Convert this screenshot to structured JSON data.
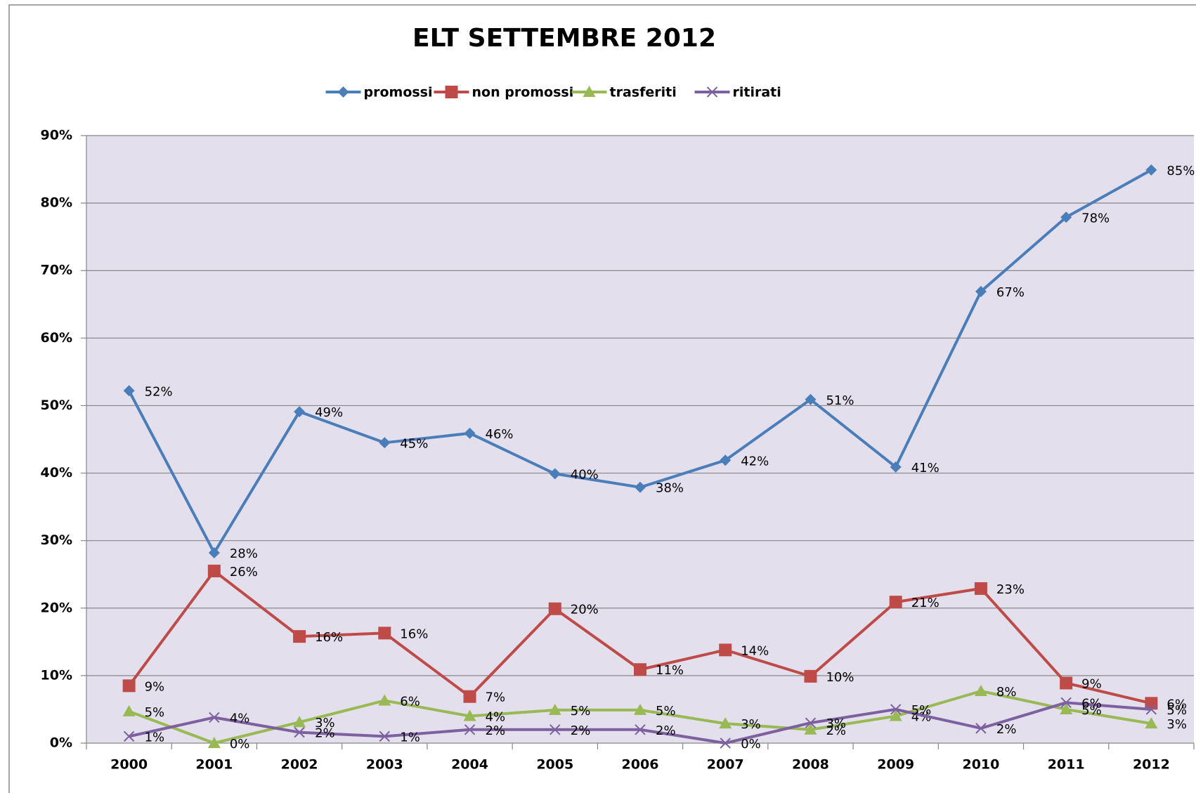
{
  "chart_data": {
    "type": "line",
    "title": "ELT   SETTEMBRE  2012",
    "categories": [
      "2000",
      "2001",
      "2002",
      "2003",
      "2004",
      "2005",
      "2006",
      "2007",
      "2008",
      "2009",
      "2010",
      "2011",
      "2012"
    ],
    "series": [
      {
        "name": "promossi",
        "color": "#4a7ebb",
        "marker": "diamond",
        "values": [
          52.2,
          28.2,
          49.1,
          44.5,
          45.9,
          39.9,
          37.9,
          41.9,
          50.9,
          40.9,
          66.9,
          77.9,
          84.9
        ],
        "value_labels": [
          "52%",
          "28%",
          "49%",
          "45%",
          "46%",
          "40%",
          "38%",
          "42%",
          "51%",
          "41%",
          "67%",
          "78%",
          "85%"
        ]
      },
      {
        "name": "non promossi",
        "color": "#be4b48",
        "marker": "square",
        "values": [
          8.5,
          25.5,
          15.8,
          16.3,
          6.9,
          19.9,
          10.9,
          13.8,
          9.9,
          20.9,
          22.9,
          8.9,
          5.9
        ],
        "value_labels": [
          "9%",
          "26%",
          "16%",
          "16%",
          "7%",
          "20%",
          "11%",
          "14%",
          "10%",
          "21%",
          "23%",
          "9%",
          "6%"
        ]
      },
      {
        "name": "trasferiti",
        "color": "#98b954",
        "marker": "triangle",
        "values": [
          4.7,
          0,
          3.1,
          6.3,
          4.0,
          4.9,
          4.9,
          2.9,
          2.0,
          4.0,
          7.7,
          5.0,
          2.9
        ],
        "value_labels": [
          "5%",
          "0%",
          "3%",
          "6%",
          "4%",
          "5%",
          "5%",
          "3%",
          "2%",
          "4%",
          "8%",
          "5%",
          "3%"
        ]
      },
      {
        "name": "ritirati",
        "color": "#7d60a0",
        "marker": "x",
        "values": [
          1.0,
          3.8,
          1.6,
          1.0,
          2.0,
          2.0,
          2.0,
          0,
          3.0,
          5.0,
          2.2,
          6.0,
          5.0
        ],
        "value_labels": [
          "1%",
          "4%",
          "2%",
          "1%",
          "2%",
          "2%",
          "2%",
          "0%",
          "3%",
          "5%",
          "2%",
          "6%",
          "5%"
        ]
      }
    ],
    "ylim": [
      0,
      90
    ],
    "yticks": [
      {
        "value": 0,
        "label": "0%"
      },
      {
        "value": 10,
        "label": "10%"
      },
      {
        "value": 20,
        "label": "20%"
      },
      {
        "value": 30,
        "label": "30%"
      },
      {
        "value": 40,
        "label": "40%"
      },
      {
        "value": 50,
        "label": "50%"
      },
      {
        "value": 60,
        "label": "60%"
      },
      {
        "value": 70,
        "label": "70%"
      },
      {
        "value": 80,
        "label": "80%"
      },
      {
        "value": 90,
        "label": "90%"
      }
    ],
    "grid": true,
    "legend": "top"
  }
}
